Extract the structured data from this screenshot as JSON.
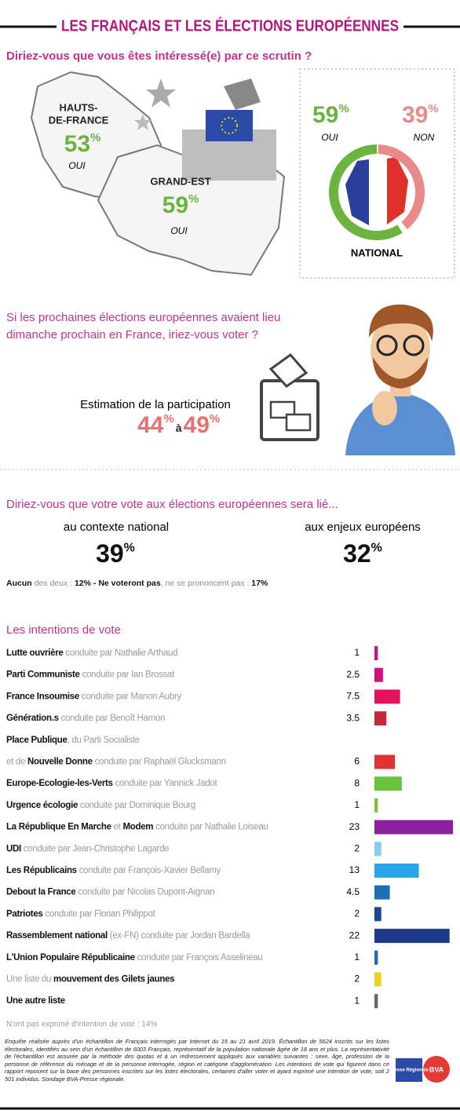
{
  "header": {
    "title": "LES FRANÇAIS ET LES ÉLECTIONS EUROPÉENNES"
  },
  "interest": {
    "question": "Diriez-vous que vous êtes intéressé(e) par ce scrutin ?",
    "percent_sign": "%",
    "regions": [
      {
        "name_lines": [
          "HAUTS-",
          "DE-FRANCE"
        ],
        "value": 53,
        "answer": "OUI"
      },
      {
        "name_lines": [
          "GRAND-EST"
        ],
        "value": 59,
        "answer": "OUI"
      }
    ],
    "national": {
      "label": "NATIONAL",
      "oui": 59,
      "oui_label": "OUI",
      "non": 39,
      "non_label": "NON",
      "oui_color": "#6cb33f",
      "non_color": "#e98a8a"
    }
  },
  "participation": {
    "question_lines": [
      "Si les prochaines élections européennes avaient lieu",
      "dimanche prochain en France, iriez-vous voter ?"
    ],
    "label": "Estimation de la participation",
    "low": 44,
    "joiner": "à",
    "high": 49,
    "percent_sign": "%"
  },
  "vote_link": {
    "question": "Diriez-vous que votre vote aux élections européennes sera lié...",
    "percent_sign": "%",
    "options": [
      {
        "label": "au contexte national",
        "value": 39
      },
      {
        "label": "aux enjeux européens",
        "value": 32
      }
    ],
    "note_parts": [
      {
        "text": "Aucun",
        "bold": true
      },
      {
        "text": " des deux : ",
        "bold": false
      },
      {
        "text": "12% - Ne voteront pas",
        "bold": true
      },
      {
        "text": ", ne se prononcent pas : ",
        "bold": false
      },
      {
        "text": "17%",
        "bold": true
      }
    ]
  },
  "chart_data": {
    "type": "bar",
    "title": "Les intentions de vote",
    "rows": [
      {
        "lines": [
          [
            {
              "text": "Lutte ouvrière",
              "bold": true
            },
            {
              "text": " conduite par Nathalie Arthaud",
              "bold": false
            }
          ]
        ],
        "value": 1,
        "color": "#c4157a"
      },
      {
        "lines": [
          [
            {
              "text": "Parti Communiste",
              "bold": true
            },
            {
              "text": " conduite par Ian Brossat",
              "bold": false
            }
          ]
        ],
        "value": 2.5,
        "color": "#d1107a"
      },
      {
        "lines": [
          [
            {
              "text": "France Insoumise",
              "bold": true
            },
            {
              "text": " conduite par Manon Aubry",
              "bold": false
            }
          ]
        ],
        "value": 7.5,
        "color": "#e0135b"
      },
      {
        "lines": [
          [
            {
              "text": "Génération.s",
              "bold": true
            },
            {
              "text": " conduite par Benoît Hamon",
              "bold": false
            }
          ]
        ],
        "value": 3.5,
        "color": "#c4293a"
      },
      {
        "lines": [
          [
            {
              "text": "Place Publique",
              "bold": true
            },
            {
              "text": ", du Parti Socialiste",
              "bold": false
            }
          ],
          [
            {
              "text": "et de ",
              "bold": false
            },
            {
              "text": "Nouvelle Donne",
              "bold": true
            },
            {
              "text": " conduite par Raphaël Glucksmann",
              "bold": false
            }
          ]
        ],
        "value": 6,
        "color": "#e33030"
      },
      {
        "lines": [
          [
            {
              "text": "Europe-Ecologie-les-Verts",
              "bold": true
            },
            {
              "text": " conduite par Yannick Jadot",
              "bold": false
            }
          ]
        ],
        "value": 8,
        "color": "#66c33a"
      },
      {
        "lines": [
          [
            {
              "text": "Urgence écologie",
              "bold": true
            },
            {
              "text": " conduite par Dominique Bourg",
              "bold": false
            }
          ]
        ],
        "value": 1,
        "color": "#7dc043"
      },
      {
        "lines": [
          [
            {
              "text": "La République En Marche",
              "bold": true
            },
            {
              "text": " et ",
              "bold": false
            },
            {
              "text": "Modem",
              "bold": true
            },
            {
              "text": " conduite par Nathalie Loiseau",
              "bold": false
            }
          ]
        ],
        "value": 23,
        "color": "#8b1fa0"
      },
      {
        "lines": [
          [
            {
              "text": "UDI",
              "bold": true
            },
            {
              "text": " conduite par Jean-Christophe Lagarde",
              "bold": false
            }
          ]
        ],
        "value": 2,
        "color": "#86cdf0"
      },
      {
        "lines": [
          [
            {
              "text": "Les Républicains",
              "bold": true
            },
            {
              "text": " conduite par François-Xavier Bellamy",
              "bold": false
            }
          ]
        ],
        "value": 13,
        "color": "#2aa6e8"
      },
      {
        "lines": [
          [
            {
              "text": "Debout la France",
              "bold": true
            },
            {
              "text": " conduite par Nicolas Dupont-Aignan",
              "bold": false
            }
          ]
        ],
        "value": 4.5,
        "color": "#1f6fb6"
      },
      {
        "lines": [
          [
            {
              "text": "Patriotes",
              "bold": true
            },
            {
              "text": " conduite par Florian Philippot",
              "bold": false
            }
          ]
        ],
        "value": 2,
        "color": "#1c4590"
      },
      {
        "lines": [
          [
            {
              "text": "Rassemblement national",
              "bold": true
            },
            {
              "text": " (ex-FN) conduite par Jordan Bardella",
              "bold": false
            }
          ]
        ],
        "value": 22,
        "color": "#1d3a8a"
      },
      {
        "lines": [
          [
            {
              "text": "L'Union Populaire Républicaine",
              "bold": true
            },
            {
              "text": " conduite par François Asselineau",
              "bold": false
            }
          ]
        ],
        "value": 1,
        "color": "#1c6ac0"
      },
      {
        "lines": [
          [
            {
              "text": "Une liste du ",
              "bold": false
            },
            {
              "text": "mouvement des Gilets jaunes",
              "bold": true
            }
          ]
        ],
        "value": 2,
        "color": "#f0d21e"
      },
      {
        "lines": [
          [
            {
              "text": "Une autre liste",
              "bold": true
            }
          ]
        ],
        "value": 1,
        "color": "#666666"
      }
    ]
  },
  "footer": {
    "no_intention": "N'ont pas exprimé d'intention de vote : 14%",
    "methodology": "Enquête réalisée auprès d'un échantillon de Français interrogés par Internet du 15 au 21 avril 2019. Échantillon de 5624 inscrits sur les listes électorales, identifiés au sein d'un échantillon de 6003 Français, représentatif de la population nationale âgée de 18 ans et plus. La représentativité de l'échantillon est assurée par la méthode des quotas et à un redressement appliqués aux variables suivantes : sexe, âge, profession de la personne de référence du ménage et de la personne interrogée, région et catégorie d'agglomération. Les intentions de vote qui figurent dans ce rapport reposent sur la base des personnes inscrites sur les listes électorales, certaines d'aller voter et ayant exprimé une intention de vote, soit 2 501 individus. Sondage BVA-Presse régionale.",
    "logos": [
      "Presse Régionale",
      "BVA"
    ]
  }
}
